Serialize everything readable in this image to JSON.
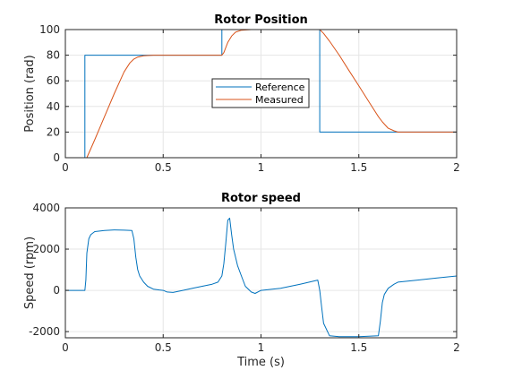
{
  "chart_data": [
    {
      "type": "line",
      "title": "Rotor Position",
      "xlabel": "",
      "ylabel": "Position (rad)",
      "xlim": [
        0,
        2
      ],
      "ylim": [
        0,
        100
      ],
      "xticks": [
        0,
        0.5,
        1,
        1.5,
        2
      ],
      "xtick_labels": [
        "0",
        "0.5",
        "1",
        "1.5",
        "2"
      ],
      "yticks": [
        0,
        20,
        40,
        60,
        80,
        100
      ],
      "ytick_labels": [
        "0",
        "20",
        "40",
        "60",
        "80",
        "100"
      ],
      "grid": true,
      "legend": "center",
      "series": [
        {
          "name": "Reference",
          "color": "#0072BD",
          "step": true,
          "x": [
            0,
            0.1,
            0.1,
            0.8,
            0.8,
            1.3,
            1.3,
            2.0
          ],
          "y": [
            0,
            0,
            80,
            80,
            100,
            100,
            20,
            20
          ]
        },
        {
          "name": "Measured",
          "color": "#D95319",
          "x": [
            0,
            0.1,
            0.11,
            0.15,
            0.2,
            0.25,
            0.3,
            0.33,
            0.35,
            0.37,
            0.4,
            0.45,
            0.5,
            0.6,
            0.7,
            0.8,
            0.81,
            0.82,
            0.83,
            0.85,
            0.87,
            0.9,
            0.95,
            1.0,
            1.1,
            1.2,
            1.3,
            1.32,
            1.35,
            1.4,
            1.45,
            1.5,
            1.55,
            1.6,
            1.62,
            1.65,
            1.68,
            1.7,
            1.8,
            1.9,
            2.0
          ],
          "y": [
            0,
            0,
            0,
            14,
            32,
            50,
            67,
            74,
            77,
            78.5,
            79.5,
            80,
            80,
            80,
            80,
            80,
            82,
            86,
            90,
            95,
            98,
            99.5,
            100,
            100,
            100,
            100,
            100,
            97,
            91,
            80,
            68,
            56,
            44,
            32,
            28,
            23,
            21,
            20,
            20,
            20,
            20
          ]
        }
      ]
    },
    {
      "type": "line",
      "title": "Rotor speed",
      "xlabel": "Time (s)",
      "ylabel": "Speed (rpm)",
      "xlim": [
        0,
        2
      ],
      "ylim": [
        -2300,
        4000
      ],
      "xticks": [
        0,
        0.5,
        1,
        1.5,
        2
      ],
      "xtick_labels": [
        "0",
        "0.5",
        "1",
        "1.5",
        "2"
      ],
      "yticks": [
        -2000,
        0,
        2000,
        4000
      ],
      "ytick_labels": [
        "-2000",
        "0",
        "2000",
        "4000"
      ],
      "grid": true,
      "series": [
        {
          "name": "",
          "color": "#0072BD",
          "x": [
            0,
            0.1,
            0.105,
            0.11,
            0.12,
            0.13,
            0.15,
            0.2,
            0.25,
            0.3,
            0.34,
            0.35,
            0.36,
            0.37,
            0.38,
            0.4,
            0.42,
            0.45,
            0.48,
            0.5,
            0.52,
            0.55,
            0.6,
            0.65,
            0.7,
            0.75,
            0.78,
            0.8,
            0.81,
            0.82,
            0.83,
            0.84,
            0.85,
            0.86,
            0.88,
            0.9,
            0.92,
            0.95,
            0.97,
            1.0,
            1.1,
            1.2,
            1.29,
            1.3,
            1.31,
            1.32,
            1.35,
            1.4,
            1.5,
            1.6,
            1.61,
            1.62,
            1.63,
            1.65,
            1.68,
            1.7,
            1.75,
            1.8,
            1.9,
            2.0
          ],
          "y": [
            0,
            0,
            500,
            1800,
            2500,
            2700,
            2850,
            2900,
            2930,
            2920,
            2900,
            2500,
            1600,
            1000,
            700,
            400,
            200,
            60,
            20,
            0,
            -80,
            -100,
            0,
            100,
            200,
            300,
            400,
            700,
            1300,
            2300,
            3400,
            3500,
            2700,
            2000,
            1200,
            700,
            200,
            -80,
            -150,
            0,
            100,
            300,
            500,
            0,
            -800,
            -1600,
            -2200,
            -2250,
            -2250,
            -2200,
            -1500,
            -600,
            -200,
            100,
            300,
            400,
            450,
            500,
            600,
            700
          ]
        }
      ]
    }
  ]
}
